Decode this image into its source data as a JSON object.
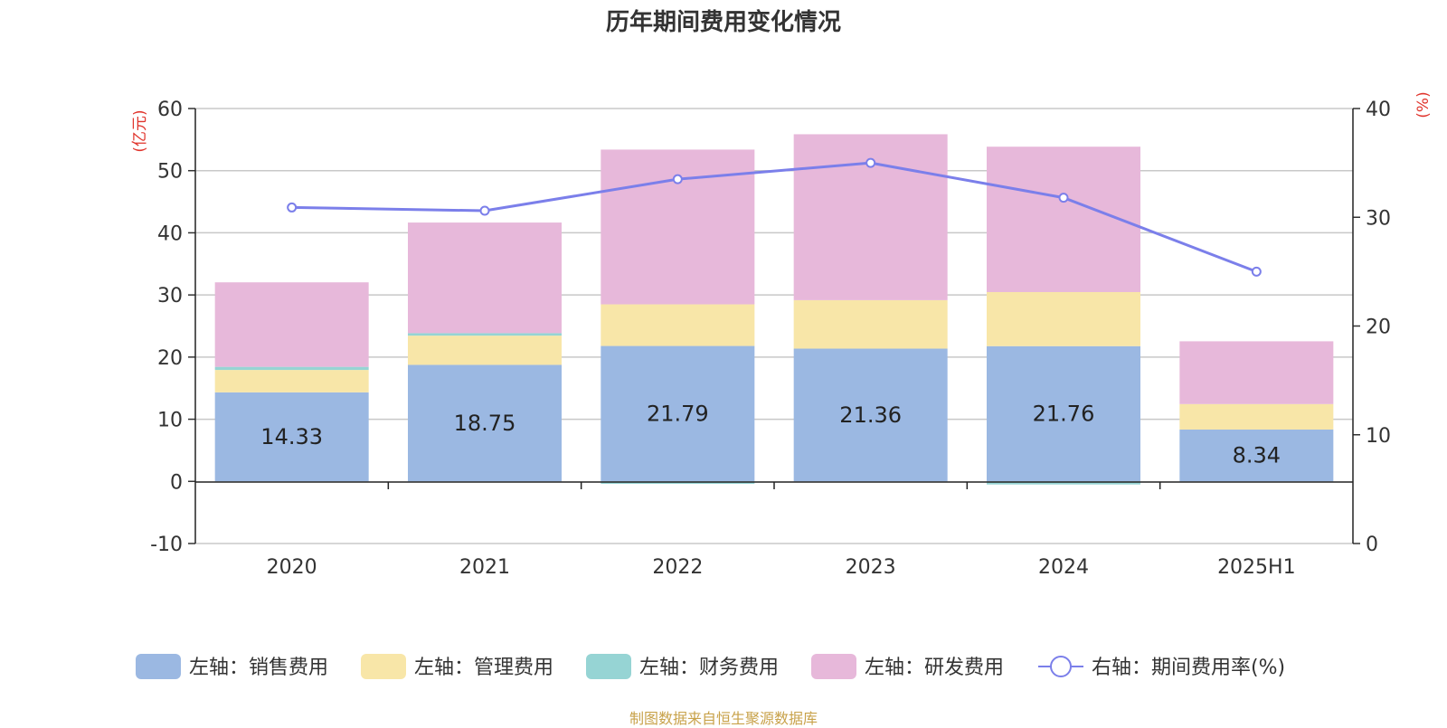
{
  "chart_data": {
    "type": "bar",
    "title": "历年期间费用变化情况",
    "source": "制图数据来自恒生聚源数据库",
    "categories": [
      "2020",
      "2021",
      "2022",
      "2023",
      "2024",
      "2025H1"
    ],
    "y_left": {
      "unit_label": "(亿元)",
      "min": -10,
      "max": 60,
      "ticks": [
        -10,
        0,
        10,
        20,
        30,
        40,
        50,
        60
      ]
    },
    "y_right": {
      "unit_label": "(%)",
      "min": 0,
      "max": 40,
      "ticks": [
        0,
        10,
        20,
        30,
        40
      ]
    },
    "grid": true,
    "legend_position": "bottom",
    "series": [
      {
        "name": "左轴：销售费用",
        "type": "bar",
        "axis": "left",
        "color": "#9bb8e2",
        "values": [
          14.33,
          18.75,
          21.79,
          21.36,
          21.76,
          8.34
        ],
        "labels": [
          "14.33",
          "18.75",
          "21.79",
          "21.36",
          "21.76",
          "8.34"
        ]
      },
      {
        "name": "左轴：管理费用",
        "type": "bar",
        "axis": "left",
        "color": "#f8e6a8",
        "values": [
          3.6,
          4.7,
          6.7,
          7.8,
          8.7,
          4.1
        ]
      },
      {
        "name": "左轴：财务费用",
        "type": "bar",
        "axis": "left",
        "color": "#96d4d4",
        "values": [
          0.5,
          0.4,
          -0.4,
          0.0,
          -0.5,
          0.0
        ]
      },
      {
        "name": "左轴：研发费用",
        "type": "bar",
        "axis": "left",
        "color": "#e7b8da",
        "values": [
          13.6,
          17.8,
          24.9,
          26.7,
          23.4,
          10.1
        ]
      },
      {
        "name": "右轴：期间费用率(%)",
        "type": "line",
        "axis": "right",
        "color": "#7b7fea",
        "values": [
          30.9,
          30.6,
          33.5,
          35.0,
          31.8,
          25.0
        ]
      }
    ]
  }
}
